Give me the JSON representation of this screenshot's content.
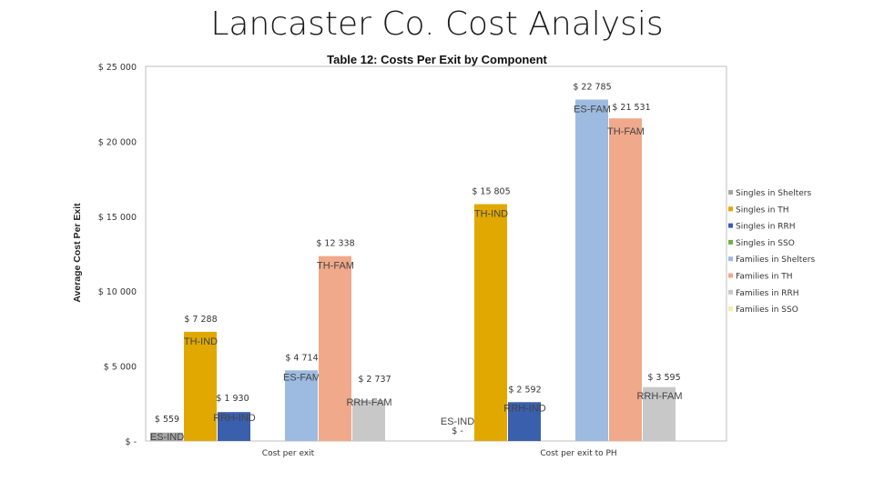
{
  "page": {
    "title": "Lancaster Co. Cost Analysis"
  },
  "chart_data": {
    "type": "bar",
    "title": "Table 12: Costs Per Exit by Component",
    "xlabel": "",
    "ylabel": "Average Cost Per Exit",
    "ylim": [
      0,
      25000
    ],
    "yticks": [
      0,
      5000,
      10000,
      15000,
      20000,
      25000
    ],
    "ytick_labels": [
      "$ -",
      "$ 5 000",
      "$ 10 000",
      "$ 15 000",
      "$ 20 000",
      "$ 25 000"
    ],
    "grid": false,
    "legend_position": "right",
    "categories": [
      "Cost per exit",
      "Cost per exit to PH"
    ],
    "series": [
      {
        "name": "Singles in Shelters",
        "color": "#a6a6a6",
        "values": [
          559,
          0
        ],
        "value_labels": [
          "$ 559",
          "$ -"
        ],
        "bar_labels": [
          "ES-IND",
          "ES-IND"
        ]
      },
      {
        "name": "Singles in TH",
        "color": "#e0a800",
        "values": [
          7288,
          15805
        ],
        "value_labels": [
          "$ 7 288",
          "$ 15 805"
        ],
        "bar_labels": [
          "TH-IND",
          "TH-IND"
        ]
      },
      {
        "name": "Singles in RRH",
        "color": "#3a5fad",
        "values": [
          1930,
          2592
        ],
        "value_labels": [
          "$ 1 930",
          "$ 2 592"
        ],
        "bar_labels": [
          "RRH-IND",
          "RRH-IND"
        ]
      },
      {
        "name": "Singles in SSO",
        "color": "#70ad47",
        "values": [
          0,
          0
        ],
        "value_labels": [
          "",
          ""
        ],
        "bar_labels": [
          "",
          ""
        ]
      },
      {
        "name": "Families in Shelters",
        "color": "#9dbbe0",
        "values": [
          4714,
          22785
        ],
        "value_labels": [
          "$ 4 714",
          "$ 22 785"
        ],
        "bar_labels": [
          "ES-FAM",
          "ES-FAM"
        ]
      },
      {
        "name": "Families in TH",
        "color": "#f0a98a",
        "values": [
          12338,
          21531
        ],
        "value_labels": [
          "$ 12 338",
          "$ 21 531"
        ],
        "bar_labels": [
          "TH-FAM",
          "TH-FAM"
        ]
      },
      {
        "name": "Families in RRH",
        "color": "#c8c8c8",
        "values": [
          2737,
          3595
        ],
        "value_labels": [
          "$ 2 737",
          "$ 3 595"
        ],
        "bar_labels": [
          "RRH-FAM",
          "RRH-FAM"
        ]
      },
      {
        "name": "Families in SSO",
        "color": "#fde9a6",
        "values": [
          0,
          0
        ],
        "value_labels": [
          "",
          ""
        ],
        "bar_labels": [
          "",
          ""
        ]
      }
    ]
  }
}
